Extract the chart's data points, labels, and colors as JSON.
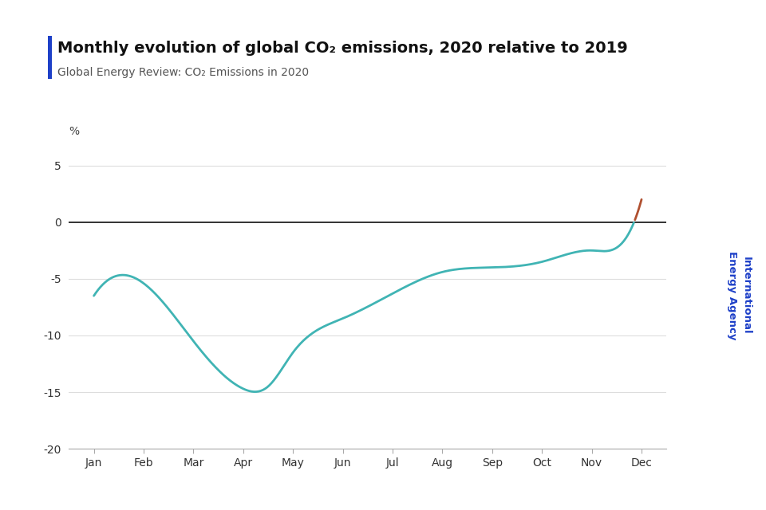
{
  "title": "Monthly evolution of global CO₂ emissions, 2020 relative to 2019",
  "subtitle": "Global Energy Review: CO₂ Emissions in 2020",
  "ylabel": "%",
  "months": [
    "Jan",
    "Feb",
    "Mar",
    "Apr",
    "May",
    "Jun",
    "Jul",
    "Aug",
    "Sep",
    "Oct",
    "Nov",
    "Dec"
  ],
  "values": [
    -6.5,
    -5.4,
    -10.5,
    -14.7,
    -14.5,
    -11.5,
    -8.5,
    -6.3,
    -4.4,
    -4.0,
    -3.5,
    -2.5,
    0.0,
    2.0
  ],
  "x_vals": [
    0,
    1,
    2,
    3,
    3.5,
    4,
    5,
    6,
    7,
    8,
    9,
    10,
    10.85,
    11
  ],
  "ylim": [
    -20,
    7
  ],
  "yticks": [
    -20,
    -15,
    -10,
    -5,
    0,
    5
  ],
  "bg_color": "#ffffff",
  "line_color_main": "#40b4b4",
  "line_color_highlight": "#b05030",
  "highlight_from_xval": 10.85,
  "title_bar_color": "#1e40c8",
  "title_fontsize": 14,
  "subtitle_fontsize": 10,
  "tick_fontsize": 10,
  "iea_text_color": "#1e40c8",
  "grid_color": "#dddddd",
  "zero_line_color": "#222222",
  "spine_color": "#aaaaaa"
}
